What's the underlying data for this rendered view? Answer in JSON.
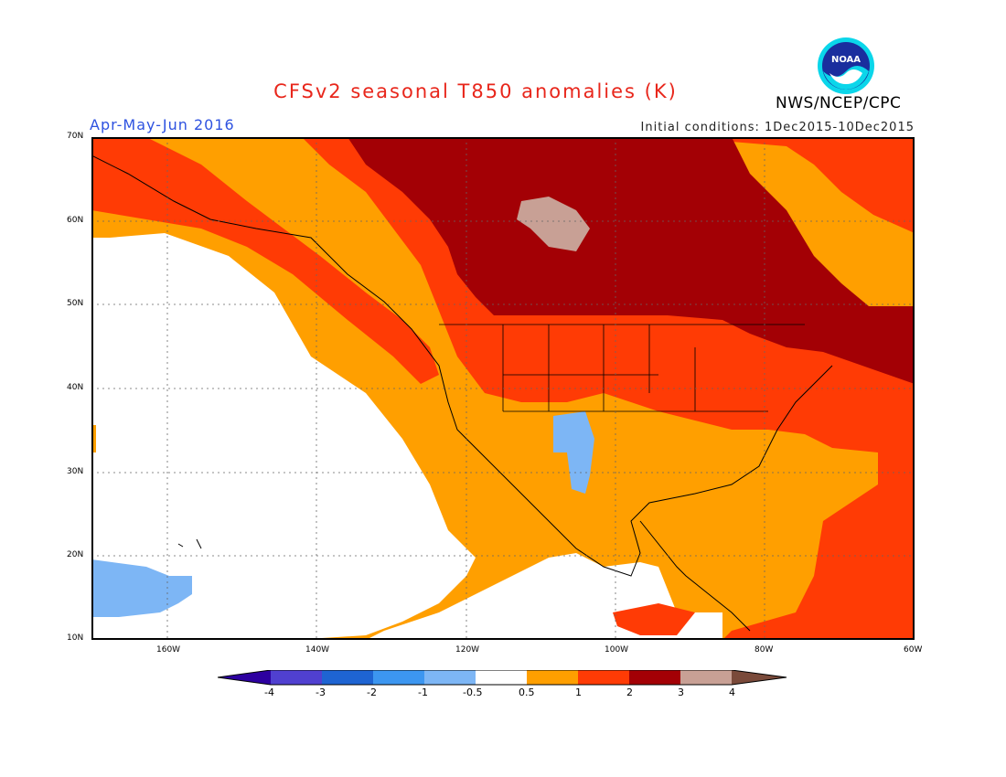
{
  "header": {
    "title": "CFSv2 seasonal T850 anomalies (K)",
    "period": "Apr-May-Jun 2016",
    "initial_conditions": "Initial conditions: 1Dec2015-10Dec2015",
    "agency": "NWS/NCEP/CPC",
    "logo_text": "NOAA"
  },
  "map": {
    "projection": "lat-lon",
    "lon_range": [
      -175,
      -60
    ],
    "lat_range": [
      10,
      70
    ],
    "lat_ticks": [
      "70N",
      "60N",
      "50N",
      "40N",
      "30N",
      "20N",
      "10N"
    ],
    "lon_ticks": [
      "160W",
      "140W",
      "120W",
      "100W",
      "80W",
      "60W"
    ],
    "grid": "dotted",
    "background_anomaly": "-0.5 to 0.5 (white)",
    "regions": [
      {
        "name": "Northern Canada / Hudson Bay",
        "category": "2 to 3",
        "color": "#a30005"
      },
      {
        "name": "Small area N Canada",
        "category": "3 to 4",
        "color": "#c8a095"
      },
      {
        "name": "Alaska & NE Pacific coast",
        "category": "1 to 2",
        "color": "#ff3b05"
      },
      {
        "name": "Northern/Eastern US",
        "category": "1 to 2",
        "color": "#ff3b05"
      },
      {
        "name": "Western Atlantic & Caribbean",
        "category": "1 to 2",
        "color": "#ff3b05"
      },
      {
        "name": "Pacific coastal band",
        "category": "0.5 to 1",
        "color": "#ff9f00"
      },
      {
        "name": "New Mexico",
        "category": "-1 to -0.5",
        "color": "#7db6f5"
      },
      {
        "name": "Near Hawaii",
        "category": "-1 to -0.5",
        "color": "#7db6f5"
      }
    ]
  },
  "legend": {
    "labels": [
      "-4",
      "-3",
      "-2",
      "-1",
      "-0.5",
      "0.5",
      "1",
      "2",
      "3",
      "4"
    ],
    "colors": [
      "#2d00a0",
      "#5040d0",
      "#1e64d2",
      "#3c96f0",
      "#7db6f5",
      "#ffffff",
      "#ff9f00",
      "#ff3b05",
      "#a30005",
      "#c8a095",
      "#7a4a3a"
    ]
  }
}
